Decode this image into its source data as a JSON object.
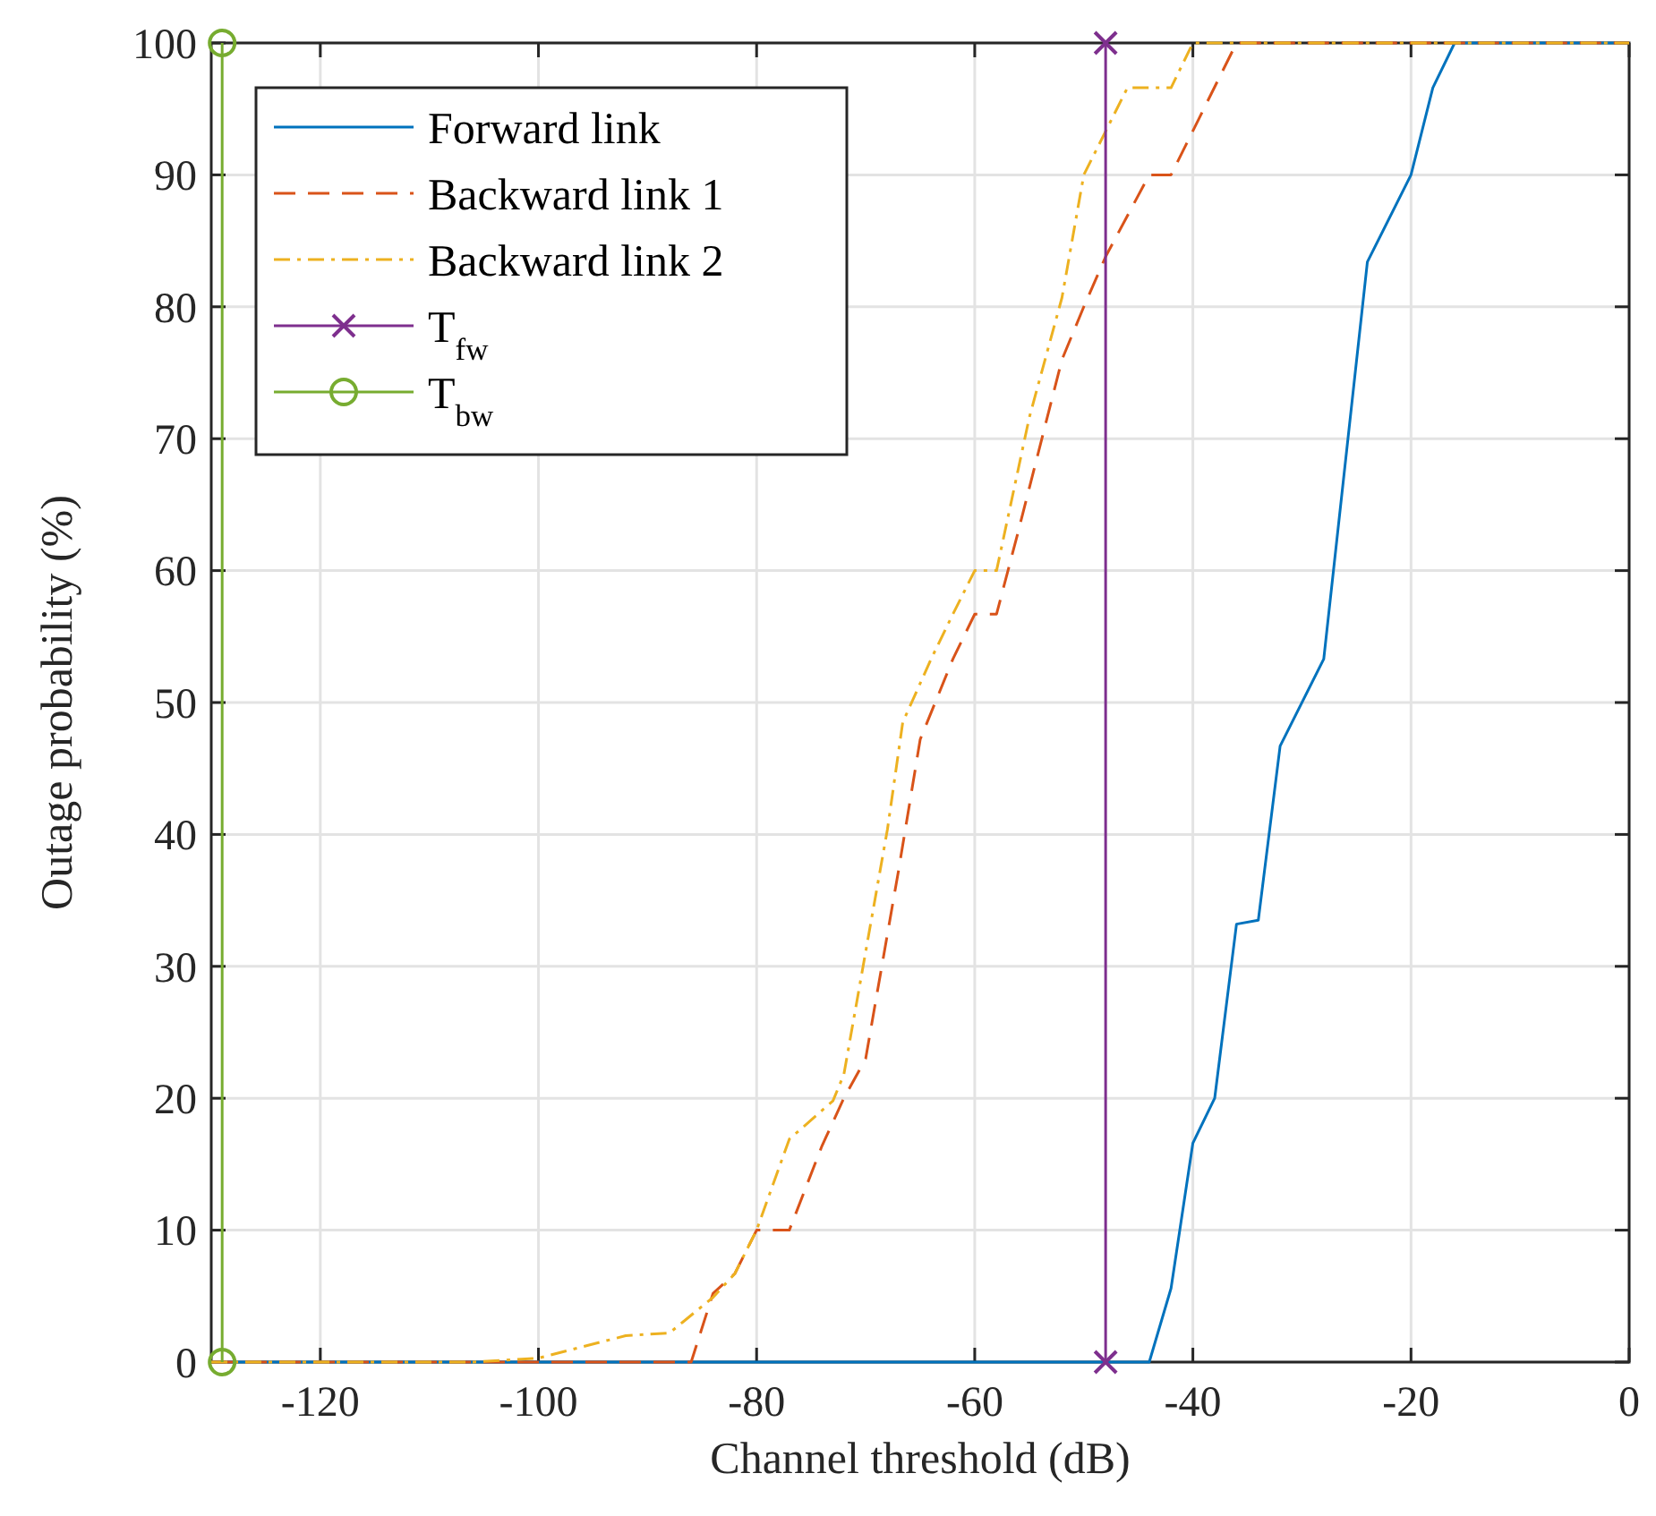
{
  "chart_data": {
    "type": "line",
    "xlabel": "Channel threshold (dB)",
    "ylabel": "Outage probability (%)",
    "xlim": [
      -130,
      0
    ],
    "xticks": [
      -120,
      -100,
      -80,
      -60,
      -40,
      -20,
      0
    ],
    "ylim": [
      0,
      100
    ],
    "yticks": [
      0,
      10,
      20,
      30,
      40,
      50,
      60,
      70,
      80,
      90,
      100
    ],
    "grid": true,
    "legend": "top left",
    "series": [
      {
        "name": "Forward link",
        "color": "#0072bd",
        "line_style": "solid",
        "marker": "none",
        "x": [
          -130,
          -44,
          -42,
          -40,
          -38,
          -36,
          -34,
          -32,
          -28,
          -24,
          -20,
          -18,
          -16,
          0
        ],
        "values": [
          0,
          0,
          5.6,
          16.6,
          20,
          33.2,
          33.5,
          46.7,
          53.3,
          83.4,
          90,
          96.6,
          100,
          100
        ]
      },
      {
        "name": "Backward link 1",
        "color": "#d95319",
        "line_style": "dashed",
        "marker": "none",
        "x": [
          -130,
          -86,
          -84,
          -82,
          -80,
          -77,
          -74,
          -72,
          -70,
          -67,
          -65,
          -62,
          -60,
          -58,
          -56,
          -52,
          -50,
          -48,
          -44,
          -42,
          -36,
          0
        ],
        "values": [
          0,
          0,
          5.2,
          6.7,
          10,
          10,
          16.4,
          20,
          23,
          37.2,
          47.2,
          53.3,
          56.7,
          56.7,
          63,
          76,
          80,
          83.8,
          90,
          90,
          100,
          100
        ]
      },
      {
        "name": "Backward link 2",
        "color": "#edb120",
        "line_style": "dashdot",
        "marker": "none",
        "x": [
          -130,
          -106,
          -100,
          -92,
          -88,
          -84,
          -82,
          -80,
          -77,
          -73,
          -72,
          -68,
          -66.6,
          -64,
          -62,
          -60,
          -58,
          -55,
          -52,
          -50,
          -46,
          -42,
          -40,
          0
        ],
        "values": [
          0,
          0,
          0.3,
          2,
          2.2,
          4.9,
          6.7,
          10,
          16.9,
          19.8,
          21.8,
          40.4,
          48.5,
          53.3,
          56.7,
          60,
          60,
          71.6,
          80.7,
          90,
          96.6,
          96.6,
          100,
          100
        ]
      },
      {
        "name": "T$_{fw}$",
        "color": "#7e2f8e",
        "line_style": "solid",
        "marker": "cross",
        "x": [
          -48,
          -48
        ],
        "values": [
          0,
          100
        ]
      },
      {
        "name": "T$_{bw}$",
        "color": "#77ac30",
        "line_style": "solid",
        "marker": "circle",
        "x": [
          -129,
          -129
        ],
        "values": [
          0,
          100
        ]
      }
    ]
  }
}
